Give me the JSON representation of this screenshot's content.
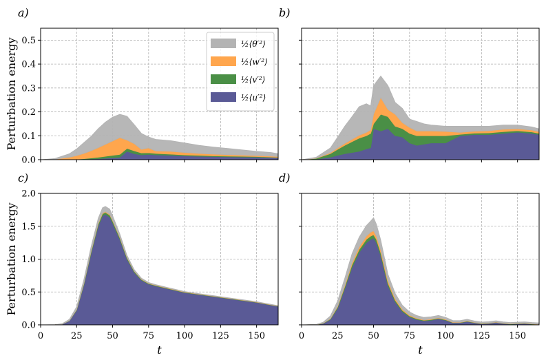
{
  "figure": {
    "ylabel": "Perturbation energy",
    "xlabel": "t",
    "colors": {
      "theta": "#b3b3b3",
      "w": "#ffa64d",
      "v": "#4a8f46",
      "u": "#5a5a96"
    }
  },
  "chart_data": [
    {
      "type": "area",
      "stacked": true,
      "panel": "a)",
      "xlim": [
        0,
        165
      ],
      "ylim": [
        0,
        0.55
      ],
      "xticks": [
        0,
        25,
        50,
        75,
        100,
        125,
        150
      ],
      "yticks": [
        0.0,
        0.1,
        0.2,
        0.3,
        0.4,
        0.5
      ],
      "ytick_labels": [
        "0.0",
        "0.1",
        "0.2",
        "0.3",
        "0.4",
        "0.5"
      ],
      "xtick_labels": [],
      "show_ylabel": true,
      "show_xlabel": false,
      "grid": true,
      "legend": {
        "position": "top-right",
        "entries": [
          {
            "key": "theta",
            "label": "½⟨θ′²⟩"
          },
          {
            "key": "w",
            "label": "½⟨w′²⟩"
          },
          {
            "key": "v",
            "label": "½⟨v′²⟩"
          },
          {
            "key": "u",
            "label": "½⟨u′²⟩"
          }
        ]
      },
      "x": [
        0,
        10,
        20,
        25,
        30,
        35,
        40,
        45,
        50,
        55,
        60,
        65,
        70,
        75,
        80,
        90,
        100,
        110,
        120,
        130,
        140,
        150,
        160,
        165
      ],
      "series": [
        {
          "name": "u",
          "values": [
            0,
            0,
            0,
            0.001,
            0.002,
            0.003,
            0.004,
            0.006,
            0.008,
            0.01,
            0.035,
            0.025,
            0.02,
            0.022,
            0.02,
            0.018,
            0.016,
            0.014,
            0.013,
            0.012,
            0.011,
            0.01,
            0.009,
            0.008
          ]
        },
        {
          "name": "v",
          "values": [
            0,
            0,
            0,
            0.001,
            0.002,
            0.004,
            0.006,
            0.008,
            0.01,
            0.012,
            0.012,
            0.012,
            0.008,
            0.007,
            0.006,
            0.005,
            0.004,
            0.004,
            0.003,
            0.003,
            0.003,
            0.003,
            0.002,
            0.002
          ]
        },
        {
          "name": "w",
          "values": [
            0,
            0.002,
            0.01,
            0.015,
            0.022,
            0.03,
            0.04,
            0.05,
            0.06,
            0.07,
            0.035,
            0.03,
            0.015,
            0.02,
            0.01,
            0.012,
            0.01,
            0.008,
            0.007,
            0.006,
            0.005,
            0.004,
            0.004,
            0.003
          ]
        },
        {
          "name": "theta",
          "values": [
            0,
            0.003,
            0.015,
            0.028,
            0.045,
            0.06,
            0.08,
            0.093,
            0.1,
            0.098,
            0.1,
            0.08,
            0.067,
            0.046,
            0.049,
            0.045,
            0.04,
            0.034,
            0.03,
            0.026,
            0.022,
            0.018,
            0.015,
            0.012
          ]
        }
      ]
    },
    {
      "type": "area",
      "stacked": true,
      "panel": "b)",
      "xlim": [
        0,
        165
      ],
      "ylim": [
        0,
        0.55
      ],
      "xticks": [
        0,
        25,
        50,
        75,
        100,
        125,
        150
      ],
      "yticks": [
        0.0,
        0.1,
        0.2,
        0.3,
        0.4,
        0.5
      ],
      "ytick_labels": [],
      "xtick_labels": [],
      "show_ylabel": false,
      "show_xlabel": false,
      "grid": true,
      "x": [
        0,
        10,
        20,
        25,
        30,
        35,
        40,
        45,
        48,
        50,
        55,
        60,
        65,
        70,
        75,
        80,
        85,
        90,
        100,
        110,
        120,
        130,
        140,
        150,
        160,
        165
      ],
      "series": [
        {
          "name": "u",
          "values": [
            0,
            0.002,
            0.01,
            0.018,
            0.025,
            0.03,
            0.035,
            0.045,
            0.05,
            0.13,
            0.12,
            0.13,
            0.1,
            0.095,
            0.07,
            0.06,
            0.065,
            0.07,
            0.07,
            0.1,
            0.105,
            0.105,
            0.11,
            0.115,
            0.11,
            0.105
          ]
        },
        {
          "name": "v",
          "values": [
            0,
            0.003,
            0.015,
            0.025,
            0.035,
            0.045,
            0.055,
            0.055,
            0.06,
            0.02,
            0.07,
            0.05,
            0.04,
            0.035,
            0.04,
            0.04,
            0.035,
            0.03,
            0.03,
            0.006,
            0.006,
            0.007,
            0.007,
            0.006,
            0.006,
            0.005
          ]
        },
        {
          "name": "w",
          "values": [
            0,
            0.001,
            0.004,
            0.006,
            0.008,
            0.01,
            0.012,
            0.014,
            0.015,
            0.04,
            0.07,
            0.03,
            0.05,
            0.025,
            0.025,
            0.02,
            0.02,
            0.02,
            0.018,
            0.008,
            0.008,
            0.009,
            0.01,
            0.008,
            0.008,
            0.007
          ]
        },
        {
          "name": "theta",
          "values": [
            0,
            0.004,
            0.02,
            0.045,
            0.072,
            0.095,
            0.12,
            0.12,
            0.1,
            0.12,
            0.09,
            0.1,
            0.05,
            0.06,
            0.035,
            0.04,
            0.03,
            0.025,
            0.022,
            0.026,
            0.021,
            0.019,
            0.018,
            0.016,
            0.013,
            0.012
          ]
        }
      ]
    },
    {
      "type": "area",
      "stacked": true,
      "panel": "c)",
      "xlim": [
        0,
        165
      ],
      "ylim": [
        0,
        2.0
      ],
      "xticks": [
        0,
        25,
        50,
        75,
        100,
        125,
        150
      ],
      "yticks": [
        0.0,
        0.5,
        1.0,
        1.5,
        2.0
      ],
      "ytick_labels": [
        "0.0",
        "0.5",
        "1.0",
        "1.5",
        "2.0"
      ],
      "xtick_labels": [
        "0",
        "25",
        "50",
        "75",
        "100",
        "125",
        "150"
      ],
      "show_ylabel": true,
      "show_xlabel": true,
      "grid": true,
      "x": [
        0,
        10,
        15,
        20,
        25,
        30,
        35,
        40,
        43,
        45,
        48,
        50,
        55,
        60,
        65,
        70,
        75,
        80,
        90,
        100,
        110,
        120,
        130,
        140,
        150,
        160,
        165
      ],
      "series": [
        {
          "name": "u",
          "values": [
            0,
            0.002,
            0.01,
            0.06,
            0.22,
            0.6,
            1.08,
            1.5,
            1.66,
            1.68,
            1.64,
            1.55,
            1.3,
            1.0,
            0.8,
            0.68,
            0.62,
            0.59,
            0.54,
            0.49,
            0.46,
            0.43,
            0.4,
            0.37,
            0.34,
            0.3,
            0.28
          ]
        },
        {
          "name": "v",
          "values": [
            0,
            0.0,
            0.001,
            0.004,
            0.01,
            0.02,
            0.025,
            0.03,
            0.03,
            0.03,
            0.03,
            0.03,
            0.025,
            0.02,
            0.015,
            0.01,
            0.008,
            0.008,
            0.006,
            0.006,
            0.005,
            0.005,
            0.005,
            0.004,
            0.004,
            0.004,
            0.004
          ]
        },
        {
          "name": "w",
          "values": [
            0,
            0.0,
            0.0,
            0.002,
            0.005,
            0.008,
            0.01,
            0.012,
            0.012,
            0.012,
            0.012,
            0.012,
            0.01,
            0.008,
            0.006,
            0.006,
            0.005,
            0.005,
            0.005,
            0.005,
            0.004,
            0.004,
            0.004,
            0.004,
            0.004,
            0.004,
            0.004
          ]
        },
        {
          "name": "theta",
          "values": [
            0,
            0.002,
            0.008,
            0.02,
            0.04,
            0.06,
            0.07,
            0.08,
            0.08,
            0.08,
            0.08,
            0.07,
            0.05,
            0.03,
            0.02,
            0.015,
            0.012,
            0.01,
            0.008,
            0.007,
            0.006,
            0.006,
            0.005,
            0.005,
            0.005,
            0.004,
            0.004
          ]
        }
      ]
    },
    {
      "type": "area",
      "stacked": true,
      "panel": "d)",
      "xlim": [
        0,
        165
      ],
      "ylim": [
        0,
        2.0
      ],
      "xticks": [
        0,
        25,
        50,
        75,
        100,
        125,
        150
      ],
      "yticks": [
        0.0,
        0.5,
        1.0,
        1.5,
        2.0
      ],
      "ytick_labels": [],
      "xtick_labels": [
        "0",
        "25",
        "50",
        "75",
        "100",
        "125",
        "150"
      ],
      "show_ylabel": false,
      "show_xlabel": true,
      "grid": true,
      "x": [
        0,
        10,
        15,
        20,
        25,
        30,
        35,
        40,
        45,
        48,
        50,
        52,
        55,
        60,
        65,
        70,
        75,
        80,
        85,
        90,
        95,
        100,
        105,
        110,
        115,
        120,
        125,
        130,
        135,
        140,
        145,
        150,
        155,
        160,
        165
      ],
      "series": [
        {
          "name": "u",
          "values": [
            0,
            0.003,
            0.02,
            0.08,
            0.25,
            0.55,
            0.87,
            1.1,
            1.25,
            1.3,
            1.32,
            1.25,
            1.05,
            0.6,
            0.35,
            0.2,
            0.12,
            0.08,
            0.06,
            0.07,
            0.09,
            0.07,
            0.03,
            0.03,
            0.05,
            0.03,
            0.015,
            0.02,
            0.035,
            0.02,
            0.01,
            0.015,
            0.02,
            0.01,
            0.006
          ]
        },
        {
          "name": "v",
          "values": [
            0,
            0.001,
            0.004,
            0.01,
            0.02,
            0.03,
            0.04,
            0.045,
            0.05,
            0.05,
            0.05,
            0.05,
            0.045,
            0.035,
            0.025,
            0.02,
            0.015,
            0.012,
            0.01,
            0.01,
            0.01,
            0.008,
            0.006,
            0.005,
            0.005,
            0.005,
            0.004,
            0.004,
            0.004,
            0.003,
            0.003,
            0.003,
            0.003,
            0.003,
            0.002
          ]
        },
        {
          "name": "w",
          "values": [
            0,
            0.0,
            0.002,
            0.005,
            0.012,
            0.02,
            0.03,
            0.04,
            0.05,
            0.06,
            0.06,
            0.05,
            0.045,
            0.035,
            0.025,
            0.018,
            0.012,
            0.01,
            0.008,
            0.008,
            0.008,
            0.007,
            0.006,
            0.005,
            0.005,
            0.005,
            0.004,
            0.004,
            0.004,
            0.003,
            0.003,
            0.003,
            0.003,
            0.003,
            0.002
          ]
        },
        {
          "name": "theta",
          "values": [
            0,
            0.003,
            0.015,
            0.04,
            0.08,
            0.11,
            0.14,
            0.15,
            0.16,
            0.17,
            0.2,
            0.18,
            0.15,
            0.1,
            0.08,
            0.06,
            0.05,
            0.04,
            0.035,
            0.035,
            0.035,
            0.03,
            0.025,
            0.025,
            0.025,
            0.02,
            0.02,
            0.02,
            0.02,
            0.02,
            0.02,
            0.02,
            0.02,
            0.02,
            0.02
          ]
        }
      ]
    }
  ]
}
